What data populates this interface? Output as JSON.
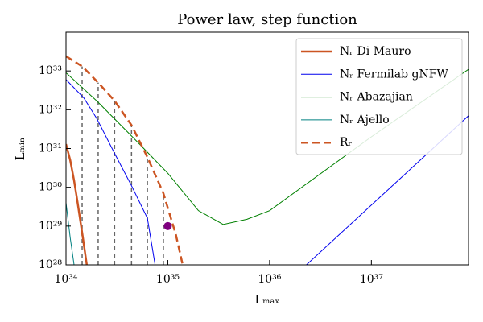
{
  "chart_data": {
    "type": "line",
    "title": "Power law, step function",
    "x_label": "Lₘₐₓ",
    "y_label": "Lₘᵢₙ",
    "log_x": true,
    "log_y": true,
    "legend": "upper right",
    "xlim": [
      1e+34,
      9e+37
    ],
    "ylim": [
      1e+28,
      1e+34
    ],
    "xticks": [
      {
        "value": 1e+34,
        "label": "10³⁴"
      },
      {
        "value": 1e+35,
        "label": "10³⁵"
      },
      {
        "value": 1e+36,
        "label": "10³⁶"
      },
      {
        "value": 1e+37,
        "label": "10³⁷"
      }
    ],
    "yticks": [
      {
        "value": 1e+28,
        "label": "10²⁸"
      },
      {
        "value": 1e+29,
        "label": "10²⁹"
      },
      {
        "value": 1e+30,
        "label": "10³⁰"
      },
      {
        "value": 1e+31,
        "label": "10³¹"
      },
      {
        "value": 1e+32,
        "label": "10³²"
      },
      {
        "value": 1e+33,
        "label": "10³³"
      }
    ],
    "series": [
      {
        "name": "Nᵣ Di Mauro",
        "color": "#cc5522",
        "style": "solid",
        "width": 2.5,
        "x": [
          1e+34,
          1.1e+34,
          1.2e+34,
          1.3e+34,
          1.45e+34,
          1.6e+34
        ],
        "values": [
          1.3e+31,
          5e+30,
          1.5e+30,
          4e+29,
          6e+28,
          1e+28
        ]
      },
      {
        "name": "Nᵣ Fermilab gNFW",
        "color": "#0000ee",
        "style": "solid",
        "width": 1,
        "x": [
          1e+34,
          1.5e+34,
          2e+34,
          3e+34,
          4.4e+34,
          6.3e+34,
          7.5e+34,
          null,
          2.3e+36,
          9e+37
        ],
        "values": [
          6e+32,
          2e+32,
          6e+31,
          7.5e+30,
          1.1e+30,
          1.6e+29,
          1e+28,
          null,
          1e+28,
          7e+31
        ]
      },
      {
        "name": "Nᵣ Abazajian",
        "color": "#008000",
        "style": "solid",
        "width": 1,
        "x": [
          1e+34,
          2e+34,
          5e+34,
          1e+35,
          2e+35,
          3.5e+35,
          6e+35,
          1e+36,
          1e+37,
          9e+37
        ],
        "values": [
          9e+32,
          1.7e+32,
          1.5e+31,
          2.3e+30,
          2.5e+29,
          1.1e+29,
          1.5e+29,
          2.5e+29,
          2e+31,
          1.1e+33
        ]
      },
      {
        "name": "Nᵣ Ajello",
        "color": "#008080",
        "style": "solid",
        "width": 1,
        "x": [
          1e+34,
          1.1e+34,
          1.2e+34
        ],
        "values": [
          4e+29,
          5e+28,
          1e+28
        ]
      },
      {
        "name": "Rᵣ",
        "color": "#cc5522",
        "style": "dashed",
        "width": 2.5,
        "x": [
          1e+34,
          1.45e+34,
          2.07e+34,
          3e+34,
          4.4e+34,
          6.3e+34,
          9.05e+34,
          1.2e+35,
          1.4e+35
        ],
        "values": [
          2.4e+33,
          1.3e+33,
          5e+32,
          1.7e+32,
          4e+31,
          6e+30,
          7e+29,
          6e+28,
          1e+28
        ]
      }
    ],
    "steps": {
      "color": "#666666",
      "x": [
        1.44e+34,
        2.07e+34,
        3e+34,
        4.4e+34,
        6.3e+34,
        9.05e+34
      ],
      "values": [
        1.3e+33,
        5e+32,
        1.7e+32,
        4e+31,
        6e+30,
        7e+29
      ]
    },
    "marker": {
      "color": "#800080",
      "x": 1e+35,
      "y": 1e+29
    }
  }
}
